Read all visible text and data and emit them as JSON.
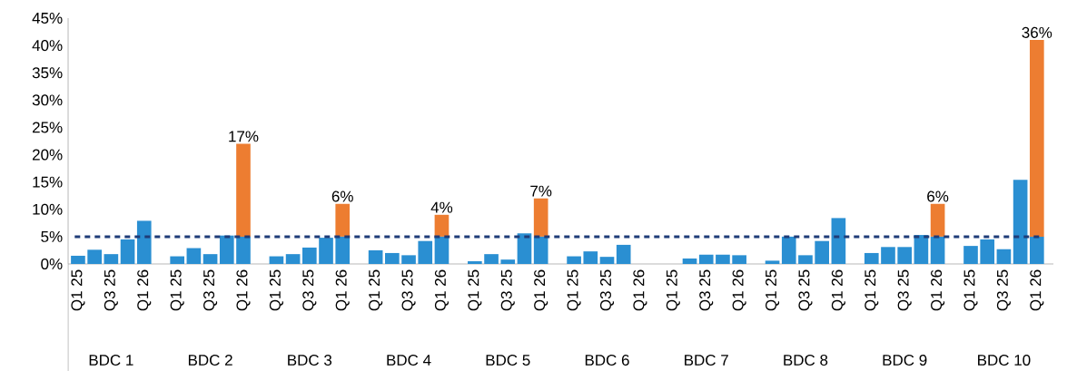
{
  "chart_data": {
    "type": "bar",
    "stacked": true,
    "categories": [
      "Q1 25",
      null,
      "Q3 25",
      null,
      "Q1 26",
      null,
      "Q1 25",
      null,
      "Q3 25",
      null,
      "Q1 26",
      null,
      "Q1 25",
      null,
      "Q3 25",
      null,
      "Q1 26",
      null,
      "Q1 25",
      null,
      "Q3 25",
      null,
      "Q1 26",
      null,
      "Q1 25",
      null,
      "Q3 25",
      null,
      "Q1 26",
      null,
      "Q1 25",
      null,
      "Q3 25",
      null,
      "Q1 26",
      null,
      "Q1 25",
      null,
      "Q3 25",
      null,
      "Q1 26",
      null,
      "Q1 25",
      null,
      "Q3 25",
      null,
      "Q1 26",
      null,
      "Q1 25",
      null,
      "Q3 25",
      null,
      "Q1 26",
      null,
      "Q1 25",
      null,
      "Q3 25",
      null,
      "Q1 26"
    ],
    "series": [
      {
        "color": "#2a8fd2",
        "values": [
          1.5,
          2.6,
          1.8,
          4.5,
          7.9,
          null,
          1.4,
          2.9,
          1.8,
          5.2,
          5,
          null,
          1.4,
          1.8,
          3.0,
          4.8,
          5,
          null,
          2.5,
          2.0,
          1.6,
          4.2,
          5,
          null,
          0.5,
          1.8,
          0.8,
          5.6,
          5,
          null,
          1.4,
          2.3,
          1.3,
          3.5,
          null,
          null,
          null,
          1.0,
          1.7,
          1.7,
          1.6,
          null,
          0.6,
          5.0,
          1.6,
          4.2,
          8.4,
          null,
          2.0,
          3.1,
          3.1,
          5.3,
          5,
          null,
          3.3,
          4.5,
          2.7,
          15.4,
          5
        ]
      },
      {
        "color": "#ed7d31",
        "values": [
          null,
          null,
          null,
          null,
          null,
          null,
          null,
          null,
          null,
          null,
          17,
          null,
          null,
          null,
          null,
          null,
          6,
          null,
          null,
          null,
          null,
          null,
          4,
          null,
          null,
          null,
          null,
          null,
          7,
          null,
          null,
          null,
          null,
          null,
          null,
          null,
          null,
          null,
          null,
          null,
          null,
          null,
          null,
          null,
          null,
          null,
          null,
          null,
          null,
          null,
          null,
          null,
          6,
          null,
          null,
          null,
          null,
          null,
          36
        ],
        "value_labels": [
          null,
          null,
          null,
          null,
          null,
          null,
          null,
          null,
          null,
          null,
          "17%",
          null,
          null,
          null,
          null,
          null,
          "6%",
          null,
          null,
          null,
          null,
          null,
          "4%",
          null,
          null,
          null,
          null,
          null,
          "7%",
          null,
          null,
          null,
          null,
          null,
          null,
          null,
          null,
          null,
          null,
          null,
          null,
          null,
          null,
          null,
          null,
          null,
          null,
          null,
          null,
          null,
          null,
          null,
          "6%",
          null,
          null,
          null,
          null,
          null,
          "36%"
        ]
      }
    ],
    "ylim": [
      0,
      45
    ],
    "yticks": [
      {
        "value": 0,
        "label": "0%"
      },
      {
        "value": 5,
        "label": "5%"
      },
      {
        "value": 10,
        "label": "10%"
      },
      {
        "value": 15,
        "label": "15%"
      },
      {
        "value": 20,
        "label": "20%"
      },
      {
        "value": 25,
        "label": "25%"
      },
      {
        "value": 30,
        "label": "30%"
      },
      {
        "value": 35,
        "label": "35%"
      },
      {
        "value": 40,
        "label": "40%"
      },
      {
        "value": 45,
        "label": "45%"
      }
    ],
    "ref_lines": [
      {
        "axis": "y",
        "value": 5,
        "color": "#1f3c78",
        "line_style": "dashed"
      }
    ],
    "annotations": [
      "BDC 1",
      "BDC 2",
      "BDC 3",
      "BDC 4",
      "BDC 5",
      "BDC 6",
      "BDC 7",
      "BDC 8",
      "BDC 9",
      "BDC 10"
    ]
  }
}
